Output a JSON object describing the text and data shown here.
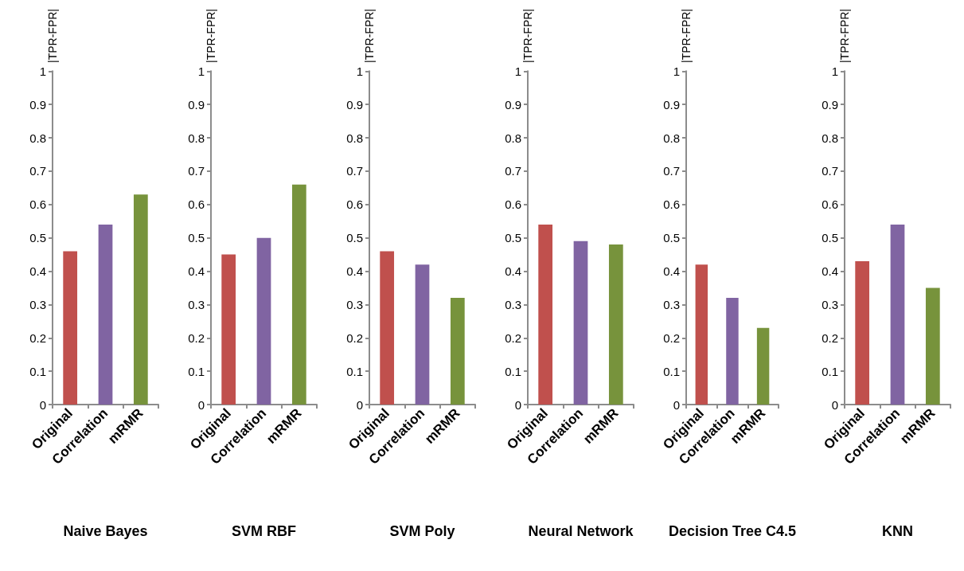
{
  "chart_data": [
    {
      "type": "bar",
      "xlabel": "Naive Bayes",
      "ylabel": "|TPR-FPR|",
      "categories": [
        "Original",
        "Correlation",
        "mRMR"
      ],
      "values": [
        0.46,
        0.54,
        0.63
      ],
      "colors": [
        "#c0504d",
        "#8064a2",
        "#77933c"
      ],
      "ylim": [
        0,
        1
      ],
      "yticks": [
        0,
        0.1,
        0.2,
        0.3,
        0.4,
        0.5,
        0.6,
        0.7,
        0.8,
        0.9,
        1
      ]
    },
    {
      "type": "bar",
      "xlabel": "SVM RBF",
      "ylabel": "|TPR-FPR|",
      "categories": [
        "Original",
        "Correlation",
        "mRMR"
      ],
      "values": [
        0.45,
        0.5,
        0.66
      ],
      "colors": [
        "#c0504d",
        "#8064a2",
        "#77933c"
      ],
      "ylim": [
        0,
        1
      ],
      "yticks": [
        0,
        0.1,
        0.2,
        0.3,
        0.4,
        0.5,
        0.6,
        0.7,
        0.8,
        0.9,
        1
      ]
    },
    {
      "type": "bar",
      "xlabel": "SVM Poly",
      "ylabel": "|TPR-FPR|",
      "categories": [
        "Original",
        "Correlation",
        "mRMR"
      ],
      "values": [
        0.46,
        0.42,
        0.32
      ],
      "colors": [
        "#c0504d",
        "#8064a2",
        "#77933c"
      ],
      "ylim": [
        0,
        1
      ],
      "yticks": [
        0,
        0.1,
        0.2,
        0.3,
        0.4,
        0.5,
        0.6,
        0.7,
        0.8,
        0.9,
        1
      ]
    },
    {
      "type": "bar",
      "xlabel": "Neural Network",
      "ylabel": "|TPR-FPR|",
      "categories": [
        "Original",
        "Correlation",
        "mRMR"
      ],
      "values": [
        0.54,
        0.49,
        0.48
      ],
      "colors": [
        "#c0504d",
        "#8064a2",
        "#77933c"
      ],
      "ylim": [
        0,
        1
      ],
      "yticks": [
        0,
        0.1,
        0.2,
        0.3,
        0.4,
        0.5,
        0.6,
        0.7,
        0.8,
        0.9,
        1
      ]
    },
    {
      "type": "bar",
      "xlabel": "Decision Tree C4.5",
      "ylabel": "|TPR-FPR|",
      "categories": [
        "Original",
        "Correlation",
        "mRMR"
      ],
      "values": [
        0.42,
        0.32,
        0.23
      ],
      "colors": [
        "#c0504d",
        "#8064a2",
        "#77933c"
      ],
      "ylim": [
        0,
        1
      ],
      "yticks": [
        0,
        0.1,
        0.2,
        0.3,
        0.4,
        0.5,
        0.6,
        0.7,
        0.8,
        0.9,
        1
      ]
    },
    {
      "type": "bar",
      "xlabel": "KNN",
      "ylabel": "|TPR-FPR|",
      "categories": [
        "Original",
        "Correlation",
        "mRMR"
      ],
      "values": [
        0.43,
        0.54,
        0.35
      ],
      "colors": [
        "#c0504d",
        "#8064a2",
        "#77933c"
      ],
      "ylim": [
        0,
        1
      ],
      "yticks": [
        0,
        0.1,
        0.2,
        0.3,
        0.4,
        0.5,
        0.6,
        0.7,
        0.8,
        0.9,
        1
      ]
    }
  ]
}
